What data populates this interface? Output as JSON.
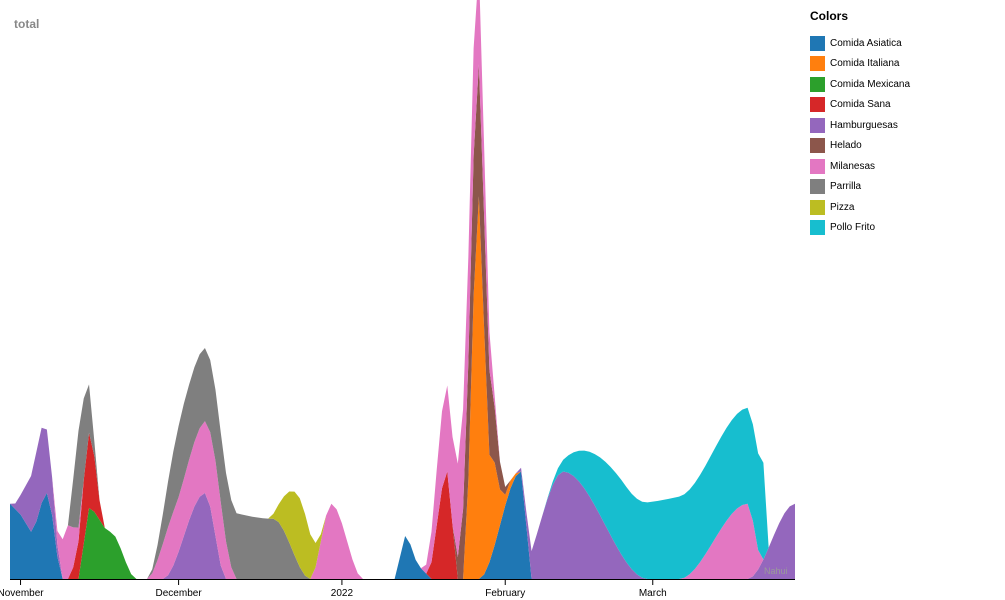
{
  "chart_data": {
    "type": "area",
    "ylabel": "total",
    "legend_title": "Colors",
    "legend_position": "right",
    "grid": false,
    "x_ticks": [
      "November",
      "December",
      "2022",
      "February",
      "March"
    ],
    "x_tick_dates": [
      "2021-11-01",
      "2021-12-01",
      "2022-01-01",
      "2022-02-01",
      "2022-03-01"
    ],
    "x_domain": [
      "2021-10-30",
      "2022-03-28"
    ],
    "y_domain": [
      0,
      2.6
    ],
    "corner_text": "Nahui",
    "colors": {
      "Comida Asiatica": "#1f77b4",
      "Comida Italiana": "#ff7f0e",
      "Comida Mexicana": "#2ca02c",
      "Comida Sana": "#d62728",
      "Hamburguesas": "#9467bd",
      "Helado": "#8c564b",
      "Milanesas": "#e377c2",
      "Parrilla": "#7f7f7f",
      "Pizza": "#bcbd22",
      "Pollo Frito": "#17becf"
    },
    "series": [
      {
        "name": "Comida Asiatica",
        "values": [
          [
            "2021-10-30",
            0.35
          ],
          [
            "2021-11-01",
            0.3
          ],
          [
            "2021-11-03",
            0.22
          ],
          [
            "2021-11-06",
            0.4
          ],
          [
            "2021-11-09",
            0.0
          ],
          [
            "2022-01-11",
            0.0
          ],
          [
            "2022-01-13",
            0.2
          ],
          [
            "2022-01-16",
            0.05
          ],
          [
            "2022-01-18",
            0.0
          ],
          [
            "2022-01-27",
            0.0
          ],
          [
            "2022-02-04",
            0.5
          ],
          [
            "2022-02-06",
            0.0
          ]
        ]
      },
      {
        "name": "Comida Italiana",
        "values": [
          [
            "2022-01-24",
            0.0
          ],
          [
            "2022-01-27",
            1.78
          ],
          [
            "2022-01-29",
            0.5
          ],
          [
            "2022-02-01",
            0.05
          ],
          [
            "2022-02-04",
            0.0
          ]
        ]
      },
      {
        "name": "Comida Mexicana",
        "values": [
          [
            "2021-11-12",
            0.0
          ],
          [
            "2021-11-14",
            0.33
          ],
          [
            "2021-11-18",
            0.22
          ],
          [
            "2021-11-23",
            0.0
          ]
        ]
      },
      {
        "name": "Comida Sana",
        "values": [
          [
            "2021-11-10",
            0.0
          ],
          [
            "2021-11-14",
            0.35
          ],
          [
            "2021-11-17",
            0.0
          ],
          [
            "2022-01-17",
            0.0
          ],
          [
            "2022-01-21",
            0.5
          ],
          [
            "2022-01-23",
            0.0
          ]
        ]
      },
      {
        "name": "Hamburguesas",
        "values": [
          [
            "2021-10-30",
            0.0
          ],
          [
            "2021-11-05",
            0.35
          ],
          [
            "2021-11-09",
            0.0
          ],
          [
            "2021-11-28",
            0.0
          ],
          [
            "2021-12-06",
            0.4
          ],
          [
            "2021-12-10",
            0.0
          ],
          [
            "2022-02-03",
            0.0
          ],
          [
            "2022-02-12",
            0.5
          ],
          [
            "2022-02-28",
            0.0
          ],
          [
            "2022-03-19",
            0.0
          ],
          [
            "2022-03-28",
            0.35
          ]
        ]
      },
      {
        "name": "Helado",
        "values": [
          [
            "2022-01-22",
            0.0
          ],
          [
            "2022-01-26",
            0.65
          ],
          [
            "2022-02-02",
            0.0
          ]
        ]
      },
      {
        "name": "Milanesas",
        "values": [
          [
            "2021-11-07",
            0.0
          ],
          [
            "2021-11-10",
            0.25
          ],
          [
            "2021-11-13",
            0.0
          ],
          [
            "2021-11-25",
            0.0
          ],
          [
            "2021-11-30",
            0.25
          ],
          [
            "2021-12-08",
            0.35
          ],
          [
            "2021-12-12",
            0.0
          ],
          [
            "2021-12-26",
            0.0
          ],
          [
            "2021-12-30",
            0.35
          ],
          [
            "2022-01-05",
            0.0
          ],
          [
            "2022-01-16",
            0.0
          ],
          [
            "2022-01-21",
            0.4
          ],
          [
            "2022-01-26",
            0.5
          ],
          [
            "2022-01-31",
            0.0
          ],
          [
            "2022-03-06",
            0.0
          ],
          [
            "2022-03-19",
            0.35
          ],
          [
            "2022-03-22",
            0.0
          ]
        ]
      },
      {
        "name": "Parrilla",
        "values": [
          [
            "2021-11-10",
            0.0
          ],
          [
            "2021-11-12",
            0.45
          ],
          [
            "2021-11-16",
            0.0
          ],
          [
            "2021-11-25",
            0.0
          ],
          [
            "2021-12-02",
            0.35
          ],
          [
            "2021-12-19",
            0.28
          ],
          [
            "2021-12-26",
            0.0
          ]
        ]
      },
      {
        "name": "Pizza",
        "values": [
          [
            "2021-12-18",
            0.0
          ],
          [
            "2021-12-24",
            0.32
          ],
          [
            "2021-12-29",
            0.0
          ]
        ]
      },
      {
        "name": "Pollo Frito",
        "values": [
          [
            "2022-02-08",
            0.0
          ],
          [
            "2022-02-24",
            0.35
          ],
          [
            "2022-03-22",
            0.45
          ],
          [
            "2022-03-23",
            0.0
          ]
        ]
      }
    ]
  }
}
